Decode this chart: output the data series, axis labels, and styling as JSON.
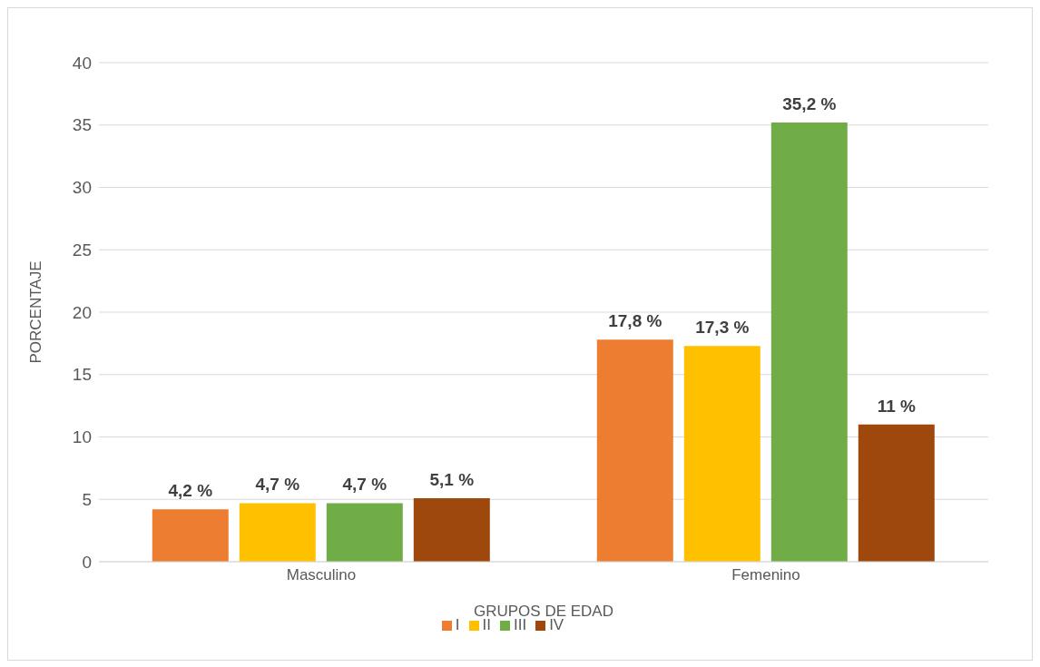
{
  "chart_data": {
    "type": "bar",
    "xlabel": "GRUPOS DE EDAD",
    "ylabel": "PORCENTAJE",
    "categories": [
      "Masculino",
      "Femenino"
    ],
    "series": [
      {
        "name": "I",
        "color": "#ed7d31",
        "values": [
          4.2,
          17.8
        ],
        "value_labels": [
          "4,2 %",
          "17,8 %"
        ]
      },
      {
        "name": "II",
        "color": "#ffc000",
        "values": [
          4.7,
          17.3
        ],
        "value_labels": [
          "4,7 %",
          "17,3 %"
        ]
      },
      {
        "name": "III",
        "color": "#70ad47",
        "values": [
          4.7,
          35.2
        ],
        "value_labels": [
          "4,7 %",
          "35,2 %"
        ]
      },
      {
        "name": "IV",
        "color": "#9e480e",
        "values": [
          5.1,
          11
        ],
        "value_labels": [
          "5,1 %",
          "11 %"
        ]
      }
    ],
    "ylim": [
      0,
      40
    ],
    "yticks": [
      0,
      5,
      10,
      15,
      20,
      25,
      30,
      35,
      40
    ],
    "grid": "y",
    "legend": "bottom"
  }
}
